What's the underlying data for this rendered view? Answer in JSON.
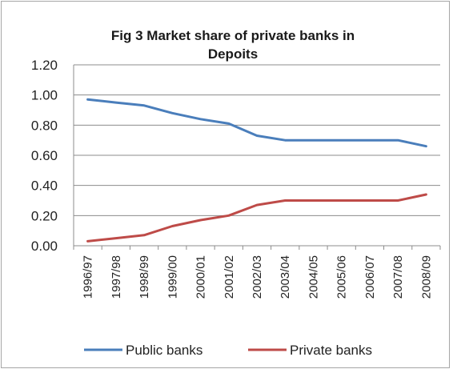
{
  "chart_data": {
    "type": "line",
    "title_lines": [
      "Fig 3 Market share of private banks in",
      "Depoits"
    ],
    "xlabel": "",
    "ylabel": "",
    "ylim": [
      0,
      1.2
    ],
    "ytick_labels": [
      "0.00",
      "0.20",
      "0.40",
      "0.60",
      "0.80",
      "1.00",
      "1.20"
    ],
    "categories": [
      "1996/97",
      "1997/98",
      "1998/99",
      "1999/00",
      "2000/01",
      "2001/02",
      "2002/03",
      "2003/04",
      "2004/05",
      "2005/06",
      "2006/07",
      "2007/08",
      "2008/09"
    ],
    "series": [
      {
        "name": "Public banks",
        "color": "#4a7ebb",
        "values": [
          0.97,
          0.95,
          0.93,
          0.88,
          0.84,
          0.81,
          0.73,
          0.7,
          0.7,
          0.7,
          0.7,
          0.7,
          0.66
        ]
      },
      {
        "name": "Private banks",
        "color": "#be4b48",
        "values": [
          0.03,
          0.05,
          0.07,
          0.13,
          0.17,
          0.2,
          0.27,
          0.3,
          0.3,
          0.3,
          0.3,
          0.3,
          0.34
        ]
      }
    ],
    "grid": true,
    "legend_position": "bottom"
  }
}
